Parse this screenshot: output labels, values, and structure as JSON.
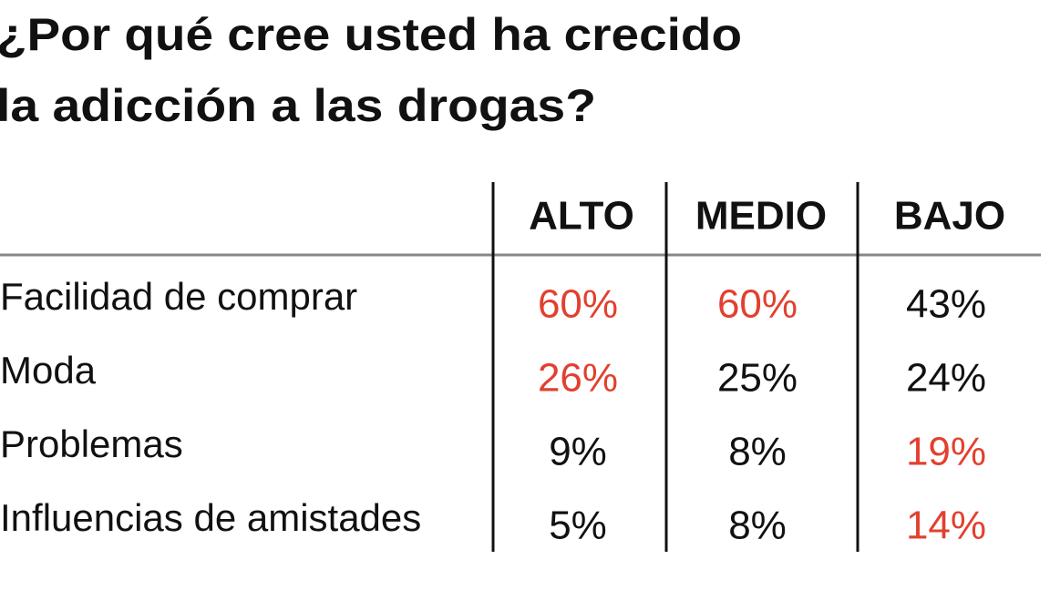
{
  "title": [
    "¿Por qué cree usted ha crecido",
    "la adicción a las drogas?"
  ],
  "table": {
    "columns": [
      "ALTO",
      "MEDIO",
      "BAJO"
    ],
    "rows": [
      {
        "label": "Facilidad de comprar",
        "cells": [
          "60%",
          "60%",
          "43%"
        ],
        "colors": [
          "#e2402f",
          "#e2402f",
          "#111111"
        ]
      },
      {
        "label": "Moda",
        "cells": [
          "26%",
          "25%",
          "24%"
        ],
        "colors": [
          "#e2402f",
          "#111111",
          "#111111"
        ]
      },
      {
        "label": "Problemas",
        "cells": [
          "9%",
          "8%",
          "19%"
        ],
        "colors": [
          "#111111",
          "#111111",
          "#e2402f"
        ]
      },
      {
        "label": "Influencias de amistades",
        "cells": [
          "5%",
          "8%",
          "14%"
        ],
        "colors": [
          "#111111",
          "#111111",
          "#e2402f"
        ]
      }
    ]
  }
}
